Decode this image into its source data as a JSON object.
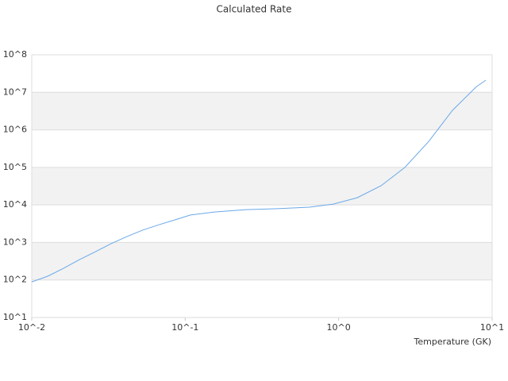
{
  "chart_data": {
    "type": "line",
    "title": "Calculated Rate",
    "x_label": "Temperature (GK)",
    "x": [
      0.01,
      0.0127,
      0.0161,
      0.0204,
      0.0259,
      0.0329,
      0.0418,
      0.053,
      0.0673,
      0.0853,
      0.108,
      0.155,
      0.249,
      0.401,
      0.645,
      0.924,
      1.32,
      1.89,
      2.7,
      3.86,
      5.51,
      7.88,
      9.1
    ],
    "series": [
      {
        "name": "Calculated Rate",
        "color": "#6aa8e8",
        "values": [
          89,
          126,
          204,
          347,
          562,
          933,
          1445,
          2138,
          2951,
          3981,
          5370,
          6457,
          7500,
          7943,
          8710,
          10500,
          15500,
          32400,
          100000,
          490000,
          3300000,
          14000000,
          21000000
        ]
      }
    ],
    "xscale": "log",
    "yscale": "log",
    "xlim": [
      0.01,
      10
    ],
    "ylim": [
      10,
      100000000
    ],
    "xticks": [
      {
        "value": 0.01,
        "label": "10^-2"
      },
      {
        "value": 0.1,
        "label": "10^-1"
      },
      {
        "value": 1,
        "label": "10^0"
      },
      {
        "value": 10,
        "label": "10^1"
      }
    ],
    "yticks": [
      {
        "value": 10,
        "label": "10^1"
      },
      {
        "value": 100,
        "label": "10^2"
      },
      {
        "value": 1000,
        "label": "10^3"
      },
      {
        "value": 10000,
        "label": "10^4"
      },
      {
        "value": 100000,
        "label": "10^5"
      },
      {
        "value": 1000000,
        "label": "10^6"
      },
      {
        "value": 10000000,
        "label": "10^7"
      },
      {
        "value": 100000000,
        "label": "10^8"
      }
    ],
    "grid": true
  }
}
